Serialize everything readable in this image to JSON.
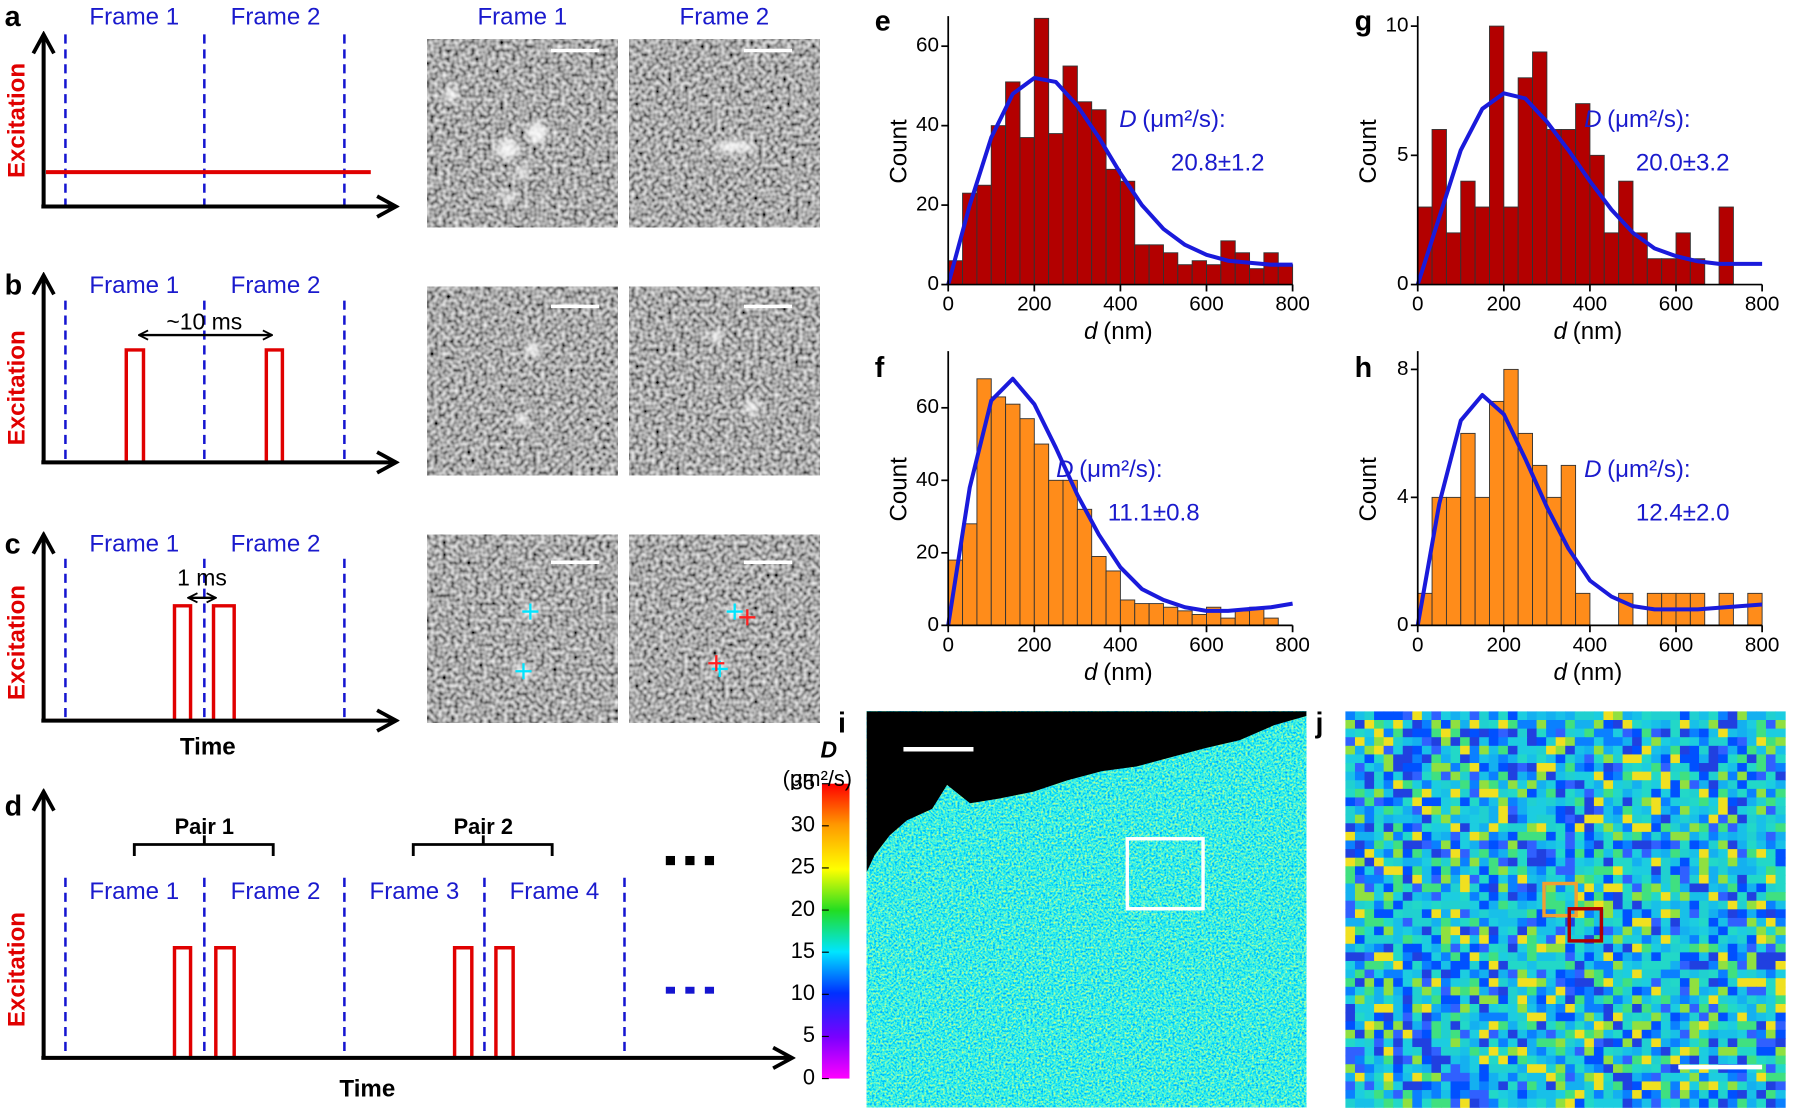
{
  "panel_labels": [
    "a",
    "b",
    "c",
    "d",
    "e",
    "f",
    "g",
    "h",
    "i",
    "j"
  ],
  "timing": {
    "frame_labels": [
      "Frame 1",
      "Frame 2",
      "Frame 3",
      "Frame 4"
    ],
    "y_label": "Excitation",
    "x_label": "Time",
    "interval_b": "~10 ms",
    "interval_c": "1 ms",
    "pairs": [
      "Pair 1",
      "Pair 2"
    ]
  },
  "images": {
    "titles": [
      "Frame 1",
      "Frame 2"
    ]
  },
  "chart_data": [
    {
      "type": "histogram",
      "ylabel": "Count",
      "xlabel_symbol": "d",
      "xlabel_unit": "(nm)",
      "color": "#b30000",
      "bins": [
        0,
        33.3,
        66.7,
        100,
        133.3,
        166.7,
        200,
        233.3,
        266.7,
        300,
        333.3,
        366.7,
        400,
        433.3,
        466.7,
        500,
        533.3,
        566.7,
        600,
        633.3,
        666.7,
        700,
        733.3,
        766.7,
        800
      ],
      "counts": [
        6,
        23,
        25,
        40,
        51,
        37,
        67,
        38,
        55,
        46,
        44,
        29,
        26,
        10,
        10,
        8,
        5,
        6,
        5,
        11,
        8,
        4,
        8,
        5
      ],
      "fit": {
        "color": "#1a1adb",
        "x": [
          0,
          50,
          100,
          150,
          200,
          250,
          300,
          350,
          400,
          450,
          500,
          550,
          600,
          650,
          700,
          750,
          800
        ],
        "values": [
          0,
          20,
          37,
          48,
          52,
          51,
          45,
          37,
          28,
          20,
          14,
          10,
          7.5,
          6,
          5.5,
          5,
          5
        ]
      },
      "xlim": [
        0,
        800
      ],
      "xticks": [
        0,
        200,
        400,
        600,
        800
      ],
      "ylim": [
        0,
        67
      ],
      "yticks": [
        0,
        20,
        40,
        60
      ],
      "annotation": {
        "symbol": "D",
        "unit": "(μm²/s):",
        "value": "20.8±1.2"
      }
    },
    {
      "type": "histogram",
      "ylabel": "Count",
      "xlabel_symbol": "d",
      "xlabel_unit": "(nm)",
      "color": "#ff8c1a",
      "bins": [
        0,
        33.3,
        66.7,
        100,
        133.3,
        166.7,
        200,
        233.3,
        266.7,
        300,
        333.3,
        366.7,
        400,
        433.3,
        466.7,
        500,
        533.3,
        566.7,
        600,
        633.3,
        666.7,
        700,
        733.3,
        766.7,
        800
      ],
      "counts": [
        18,
        28,
        68,
        63,
        61,
        57,
        50,
        40,
        40,
        32,
        19,
        15,
        7,
        6,
        6,
        5,
        4,
        3,
        5,
        2,
        4,
        5,
        2,
        0
      ],
      "fit": {
        "color": "#1a1adb",
        "x": [
          0,
          50,
          100,
          150,
          200,
          250,
          300,
          350,
          400,
          450,
          500,
          550,
          600,
          650,
          700,
          750,
          800
        ],
        "values": [
          0,
          38,
          62,
          68,
          61,
          49,
          36,
          25,
          16,
          10,
          7,
          5,
          4,
          4,
          4.5,
          5,
          6
        ]
      },
      "xlim": [
        0,
        800
      ],
      "xticks": [
        0,
        200,
        400,
        600,
        800
      ],
      "ylim": [
        0,
        75
      ],
      "yticks": [
        0,
        20,
        40,
        60
      ],
      "annotation": {
        "symbol": "D",
        "unit": "(μm²/s):",
        "value": "11.1±0.8"
      }
    },
    {
      "type": "histogram",
      "ylabel": "Count",
      "xlabel_symbol": "d",
      "xlabel_unit": "(nm)",
      "color": "#b30000",
      "bins": [
        0,
        33.3,
        66.7,
        100,
        133.3,
        166.7,
        200,
        233.3,
        266.7,
        300,
        333.3,
        366.7,
        400,
        433.3,
        466.7,
        500,
        533.3,
        566.7,
        600,
        633.3,
        666.7,
        700,
        733.3,
        766.7,
        800
      ],
      "counts": [
        3,
        6,
        2,
        4,
        3,
        10,
        3,
        8,
        9,
        6,
        6,
        7,
        5,
        2,
        4,
        2,
        1,
        1,
        2,
        1,
        0,
        3,
        0,
        0
      ],
      "fit": {
        "color": "#1a1adb",
        "x": [
          0,
          50,
          100,
          150,
          200,
          250,
          300,
          350,
          400,
          450,
          500,
          550,
          600,
          650,
          700,
          750,
          800
        ],
        "values": [
          0,
          2.6,
          5.2,
          6.8,
          7.4,
          7.2,
          6.3,
          5.2,
          4,
          2.9,
          2,
          1.4,
          1.1,
          0.9,
          0.8,
          0.8,
          0.8
        ]
      },
      "xlim": [
        0,
        800
      ],
      "xticks": [
        0,
        200,
        400,
        600,
        800
      ],
      "ylim": [
        0,
        10.3
      ],
      "yticks": [
        0,
        5,
        10
      ],
      "annotation": {
        "symbol": "D",
        "unit": "(μm²/s):",
        "value": "20.0±3.2"
      }
    },
    {
      "type": "histogram",
      "ylabel": "Count",
      "xlabel_symbol": "d",
      "xlabel_unit": "(nm)",
      "color": "#ff8c1a",
      "bins": [
        0,
        33.3,
        66.7,
        100,
        133.3,
        166.7,
        200,
        233.3,
        266.7,
        300,
        333.3,
        366.7,
        400,
        433.3,
        466.7,
        500,
        533.3,
        566.7,
        600,
        633.3,
        666.7,
        700,
        733.3,
        766.7,
        800
      ],
      "counts": [
        1,
        4,
        4,
        6,
        4,
        7,
        8,
        6,
        5,
        4,
        5,
        1,
        0,
        0,
        1,
        0,
        1,
        1,
        1,
        1,
        0,
        1,
        0,
        1
      ],
      "fit": {
        "color": "#1a1adb",
        "x": [
          0,
          50,
          100,
          150,
          200,
          250,
          300,
          350,
          400,
          450,
          500,
          550,
          600,
          650,
          700,
          750,
          800
        ],
        "values": [
          0,
          3.8,
          6.4,
          7.2,
          6.6,
          5.2,
          3.7,
          2.4,
          1.4,
          0.9,
          0.6,
          0.5,
          0.5,
          0.5,
          0.55,
          0.6,
          0.65
        ]
      },
      "xlim": [
        0,
        800
      ],
      "xticks": [
        0,
        200,
        400,
        600,
        800
      ],
      "ylim": [
        0,
        8.5
      ],
      "yticks": [
        0,
        4,
        8
      ],
      "annotation": {
        "symbol": "D",
        "unit": "(μm²/s):",
        "value": "12.4±2.0"
      }
    }
  ],
  "colorbar": {
    "symbol": "D",
    "unit": "(μm²/s)",
    "lim": [
      0,
      35
    ],
    "ticks": [
      0,
      5,
      10,
      15,
      20,
      25,
      30,
      35
    ]
  }
}
